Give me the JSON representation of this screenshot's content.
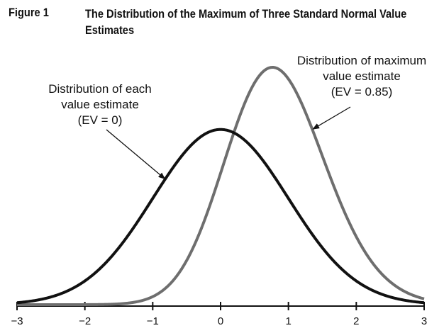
{
  "figure": {
    "label": "Figure 1",
    "title": "The Distribution of the Maximum of Three Standard Normal Value Estimates"
  },
  "chart_data": {
    "type": "line",
    "title": "The Distribution of the Maximum of Three Standard Normal Value Estimates",
    "xlabel": "",
    "ylabel": "",
    "xlim": [
      -3,
      3
    ],
    "x_ticks": [
      -3,
      -2,
      -1,
      0,
      1,
      2,
      3
    ],
    "x_tick_labels": [
      "−3",
      "−2",
      "−1",
      "0",
      "1",
      "2",
      "3"
    ],
    "grid": false,
    "legend": "none",
    "series": [
      {
        "key": "each",
        "distribution": "standard normal density",
        "mean": 0,
        "color": "#111111"
      },
      {
        "key": "max",
        "distribution": "density of maximum of three standard normals",
        "mean": 0.85,
        "color": "#6e6e6e"
      }
    ],
    "annotations": [
      {
        "key": "each",
        "lines": [
          "Distribution of each",
          "value estimate",
          "(EV = 0)"
        ],
        "target_x": -0.8
      },
      {
        "key": "max",
        "lines": [
          "Distribution of maximum",
          "value estimate",
          "(EV = 0.85)"
        ],
        "target_x": 1.35
      }
    ]
  }
}
